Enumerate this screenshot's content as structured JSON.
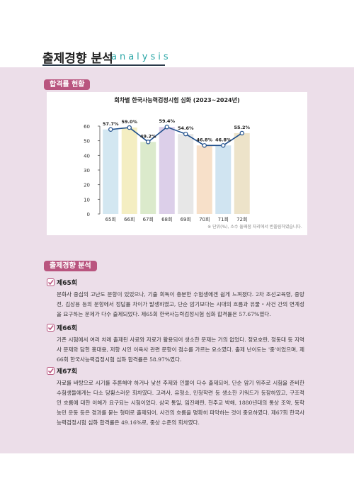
{
  "header": {
    "title": "출제경향 분석",
    "subtitle": "analysis"
  },
  "chart_section": {
    "badge": "합격률 현황"
  },
  "chart_data": {
    "type": "bar_line",
    "title": "회차별 한국사능력검정시험 심화 (2023~2024년)",
    "categories": [
      "65회",
      "66회",
      "67회",
      "68회",
      "69회",
      "70회",
      "71회",
      "72회"
    ],
    "values": [
      57.7,
      59.0,
      49.2,
      59.4,
      54.6,
      46.8,
      46.8,
      55.2
    ],
    "value_labels": [
      "57.7%",
      "59.0%",
      "49.2%",
      "59.4%",
      "54.6%",
      "46.8%",
      "46.8%",
      "55.2%"
    ],
    "bar_colors": [
      "#d3e7f1",
      "#f4eec2",
      "#dbeacb",
      "#dccfe9",
      "#e7e7e7",
      "#f7e0c9",
      "#d0e4f1",
      "#ede3c9"
    ],
    "line_color": "#1f4f8c",
    "ylim": [
      0,
      60
    ],
    "yticks": [
      0,
      10,
      20,
      30,
      40,
      50,
      60
    ],
    "note": "※ 단위(%), 소수 둘째점 자리에서 반올림하였습니다."
  },
  "analysis": {
    "badge": "출제경향 분석",
    "sections": [
      {
        "heading": "제65회",
        "text": "문화사 중심의 고난도 문항이 있었으나, 기출 회독이 충분한 수험생에겐 쉽게 느껴졌다. 2차 조선교육령, 중앙전, 김상용 등의 문항에서 정답률 차이가 발생하였고, 단순 암기보다는 시대의 흐름과 유물・사건 간의 연계성을 요구하는 문제가 다수 출제되었다. 제65회 한국사능력검정시험 심화 합격률은 57.67%였다."
      },
      {
        "heading": "제66회",
        "text": "기존 시험에서 여러 차례 출제된 사료와 자료가 활용되어 생소한 문제는 거의 없었다. 정묘호란, 정동대 등 지역사 문제와 담헌 홍대용, 저항 시인 이육사 관련 문항이 점수를 가르는 요소였다. 출제 난이도는 '중'이었으며, 제66회 한국사능력검정시험 심화 합격률은 58.97%였다."
      },
      {
        "heading": "제67회",
        "text": "자료를 바탕으로 시기를 추론해야 하거나 낯선 주제와 인물이 다수 출제되어, 단순 암기 위주로 시험을 준비한 수험생들에게는 다소 당황스러운 회차였다. 고려사, 유형소, 민청학련 등 생소한 키워드가 등장하였고, 구조적인 흐름에 대한 이해가 요구되는 시험이었다. 삼국 통일, 임진왜란, 천주교 박해, 1880년대의 통상 조약, 동학 농민 운동 등은 경과를 묻는 형태로 출제되어, 사건의 흐름을 명확히 파악하는 것이 중요하였다. 제67회 한국사능력검정시험 심화 합격률은 49.16%로, 중상 수준의 회차였다."
      }
    ]
  }
}
